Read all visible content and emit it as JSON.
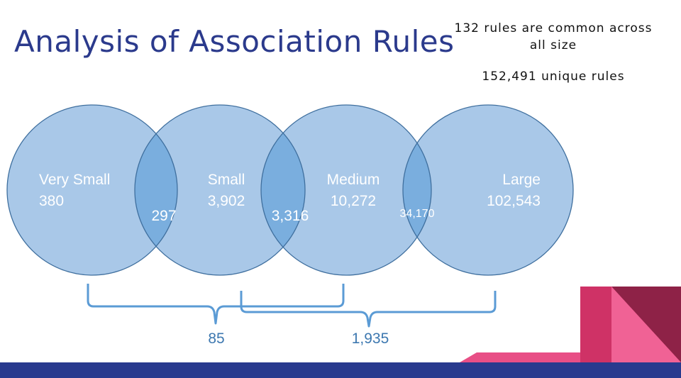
{
  "slide": {
    "title": "Analysis of Association Rules",
    "note_common": "132 rules are common across all size",
    "note_unique": "152,491 unique rules"
  },
  "sets": [
    {
      "name": "Very Small",
      "count": "380"
    },
    {
      "name": "Small",
      "count": "3,902"
    },
    {
      "name": "Medium",
      "count": "10,272"
    },
    {
      "name": "Large",
      "count": "102,543"
    }
  ],
  "overlaps": {
    "very_small_small": "297",
    "small_medium": "3,316",
    "medium_large": "34,170"
  },
  "braces": {
    "very_small_to_medium": "85",
    "small_to_large": "1,935"
  },
  "colors": {
    "title": "#2b3a8c",
    "circle_fill": "#a9c8e8",
    "circle_stroke": "#3f6f9e",
    "overlap_fill": "#7aaede",
    "brace": "#5b9bd5",
    "brace_label": "#3d78b0",
    "footer": "#283a8e",
    "accent_pink": "#e8427a",
    "accent_crimson": "#c2325e",
    "accent_maroon": "#8e2247"
  }
}
